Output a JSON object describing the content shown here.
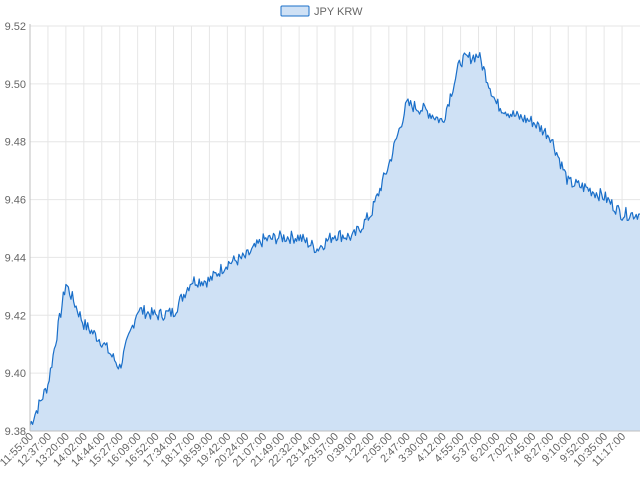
{
  "chart_data": {
    "type": "area",
    "title": "",
    "xlabel": "",
    "ylabel": "",
    "legend": {
      "position": "top-center",
      "entries": [
        "JPY KRW"
      ]
    },
    "grid": true,
    "ylim": [
      9.38,
      9.52
    ],
    "yticks": [
      "9.38",
      "9.40",
      "9.42",
      "9.44",
      "9.46",
      "9.48",
      "9.50",
      "9.52"
    ],
    "xtick_labels": [
      "11:55:00",
      "12:37:00",
      "13:20:00",
      "14:02:00",
      "14:44:00",
      "15:27:00",
      "16:09:00",
      "16:52:00",
      "17:34:00",
      "18:17:00",
      "18:59:00",
      "19:42:00",
      "20:24:00",
      "21:07:00",
      "21:49:00",
      "22:32:00",
      "23:14:00",
      "23:57:00",
      "0:39:00",
      "1:22:00",
      "2:05:00",
      "2:47:00",
      "3:30:00",
      "4:12:00",
      "4:55:00",
      "5:37:00",
      "6:20:00",
      "7:02:00",
      "7:45:00",
      "8:27:00",
      "9:10:00",
      "9:52:00",
      "10:35:00",
      "11:17:00"
    ],
    "colors": {
      "line": "#1a6fc9",
      "fill": "#cfe1f5",
      "grid": "#e6e6e6",
      "axis": "#bfbfbf"
    },
    "series": [
      {
        "name": "JPY KRW",
        "x": [
          "11:55:00",
          "12:37:00",
          "13:20:00",
          "14:02:00",
          "14:44:00",
          "15:27:00",
          "16:09:00",
          "16:52:00",
          "17:34:00",
          "18:17:00",
          "18:59:00",
          "19:42:00",
          "20:24:00",
          "21:07:00",
          "21:49:00",
          "22:32:00",
          "23:14:00",
          "23:57:00",
          "0:39:00",
          "1:22:00",
          "2:05:00",
          "2:47:00",
          "3:30:00",
          "4:12:00",
          "4:55:00",
          "5:37:00",
          "6:20:00",
          "7:02:00",
          "7:45:00",
          "8:27:00",
          "9:10:00",
          "9:52:00",
          "10:35:00",
          "11:17:00"
        ],
        "values": [
          9.382,
          9.396,
          9.431,
          9.417,
          9.411,
          9.402,
          9.422,
          9.42,
          9.421,
          9.432,
          9.432,
          9.438,
          9.44,
          9.446,
          9.447,
          9.447,
          9.443,
          9.448,
          9.447,
          9.455,
          9.472,
          9.493,
          9.491,
          9.487,
          9.508,
          9.51,
          9.493,
          9.489,
          9.487,
          9.482,
          9.466,
          9.464,
          9.461,
          9.455
        ]
      }
    ]
  }
}
